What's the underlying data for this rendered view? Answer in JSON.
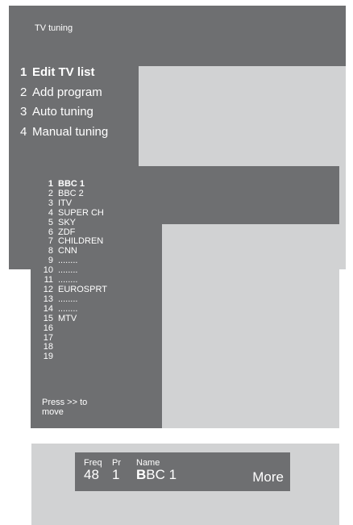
{
  "tv_tuning_menu": {
    "title": "TV tuning",
    "items": [
      {
        "number": "1",
        "label": "Edit TV list"
      },
      {
        "number": "2",
        "label": "Add program"
      },
      {
        "number": "3",
        "label": "Auto tuning"
      },
      {
        "number": "4",
        "label": "Manual tuning"
      }
    ],
    "selected_index": 0
  },
  "program_list": {
    "programs": [
      {
        "number": "1",
        "name": "BBC 1"
      },
      {
        "number": "2",
        "name": "BBC 2"
      },
      {
        "number": "3",
        "name": "ITV"
      },
      {
        "number": "4",
        "name": "SUPER CH"
      },
      {
        "number": "5",
        "name": "SKY"
      },
      {
        "number": "6",
        "name": "ZDF"
      },
      {
        "number": "7",
        "name": "CHILDREN"
      },
      {
        "number": "8",
        "name": "CNN"
      },
      {
        "number": "9",
        "name": "........"
      },
      {
        "number": "10",
        "name": "........"
      },
      {
        "number": "11",
        "name": "........"
      },
      {
        "number": "12",
        "name": "EUROSPRT"
      },
      {
        "number": "13",
        "name": "........"
      },
      {
        "number": "14",
        "name": "........"
      },
      {
        "number": "15",
        "name": "MTV"
      },
      {
        "number": "16",
        "name": ""
      },
      {
        "number": "17",
        "name": ""
      },
      {
        "number": "18",
        "name": ""
      },
      {
        "number": "19",
        "name": ""
      }
    ],
    "selected_index": 0,
    "hint": "Press >> to move"
  },
  "manual_tuning_bar": {
    "freq_label": "Freq",
    "freq_value": "48",
    "pr_label": "Pr",
    "pr_value": "1",
    "name_label": "Name",
    "name_value": "BBC 1",
    "more_label": "More"
  },
  "colors": {
    "panel_dark": "#6e6f71",
    "panel_light": "#d1d2d3",
    "text": "#ffffff"
  }
}
